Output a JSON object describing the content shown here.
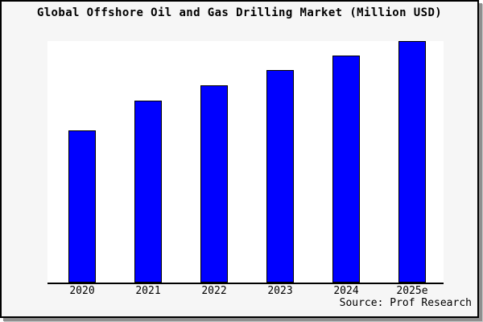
{
  "window": {
    "background": "#f6f6f6",
    "border_color": "#000000",
    "shadow_color": "#8f8f8f"
  },
  "chart_data": {
    "type": "bar",
    "title": "Global Offshore Oil and Gas Drilling Market (Million USD)",
    "categories": [
      "2020",
      "2021",
      "2022",
      "2023",
      "2024",
      "2025e"
    ],
    "values_relative_pct_of_max": [
      63,
      75.3,
      81.7,
      88,
      94,
      100
    ],
    "xlabel": "",
    "ylabel": "",
    "y_axis_labels_visible": false,
    "grid": false,
    "legend": false,
    "bar_color": "#0000ff",
    "bar_border_color": "#000000",
    "plot_background": "#ffffff",
    "source_label": "Source: Prof Research"
  }
}
